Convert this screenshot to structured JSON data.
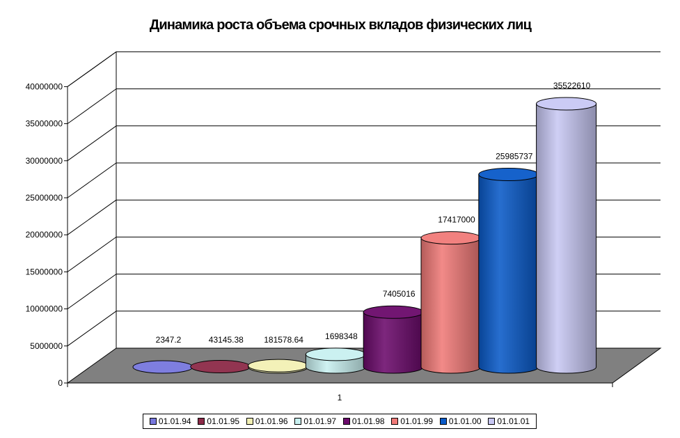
{
  "chart_data": {
    "type": "bar",
    "title": "Динамика роста объема срочных вкладов физических лиц",
    "categories": [
      "1"
    ],
    "series": [
      {
        "name": "01.01.94",
        "values": [
          2347.2
        ],
        "label": "2347.2",
        "color": "#7777dd"
      },
      {
        "name": "01.01.95",
        "values": [
          43145.38
        ],
        "label": "43145.38",
        "color": "#8c2a48"
      },
      {
        "name": "01.01.96",
        "values": [
          181578.64
        ],
        "label": "181578.64",
        "color": "#f2f0b4"
      },
      {
        "name": "01.01.97",
        "values": [
          1698348
        ],
        "label": "1698348",
        "color": "#c8f0f0"
      },
      {
        "name": "01.01.98",
        "values": [
          7405016
        ],
        "label": "7405016",
        "color": "#6b0a6b"
      },
      {
        "name": "01.01.99",
        "values": [
          17417000
        ],
        "label": "17417000",
        "color": "#f07a78"
      },
      {
        "name": "01.01.00",
        "values": [
          25985737
        ],
        "label": "25985737",
        "color": "#0a5ac8"
      },
      {
        "name": "01.01.01",
        "values": [
          35522610
        ],
        "label": "35522610",
        "color": "#c8c8f4"
      }
    ],
    "ylim": [
      0,
      40000000
    ],
    "yticks": [
      "0",
      "5000000",
      "10000000",
      "15000000",
      "20000000",
      "25000000",
      "30000000",
      "35000000",
      "40000000"
    ],
    "grid": true,
    "legend_position": "bottom"
  }
}
